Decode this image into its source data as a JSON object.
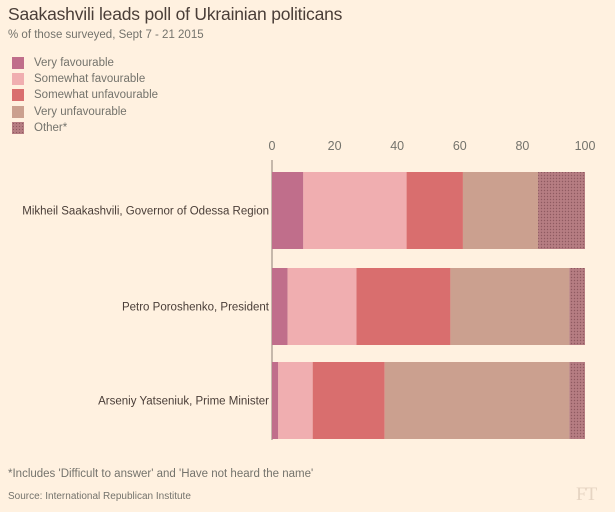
{
  "title": "Saakashvili leads poll of Ukrainian politicans",
  "subtitle": "% of those surveyed, Sept 7 - 21 2015",
  "footnote": "*Includes 'Difficult to answer' and 'Have not heard the name'",
  "source": "Source: International Republican Institute",
  "logo": "FT",
  "chart_data": {
    "type": "bar",
    "orientation": "horizontal",
    "stacked": true,
    "categories": [
      "Mikheil Saakashvili, Governor of Odessa Region",
      "Petro Poroshenko, President",
      "Arseniy Yatseniuk, Prime Minister"
    ],
    "series": [
      {
        "name": "Very favourable",
        "color": "#c06e8b",
        "values": [
          10,
          5,
          2
        ]
      },
      {
        "name": "Somewhat favourable",
        "color": "#f0aeb0",
        "values": [
          33,
          22,
          11
        ]
      },
      {
        "name": "Somewhat unfavourable",
        "color": "#d96e6e",
        "values": [
          18,
          30,
          23
        ]
      },
      {
        "name": "Very unfavourable",
        "color": "#cba08f",
        "values": [
          24,
          38,
          59
        ]
      },
      {
        "name": "Other*",
        "color": "#b67d82",
        "pattern": true,
        "values": [
          15,
          5,
          5
        ]
      }
    ],
    "xlim": [
      0,
      100
    ],
    "xticks": [
      0,
      20,
      40,
      60,
      80,
      100
    ],
    "xaxis_position": "top",
    "grid": false,
    "legend_position": "top-left"
  }
}
